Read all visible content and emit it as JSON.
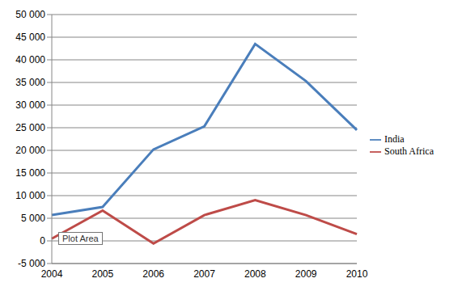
{
  "chart_data": {
    "type": "line",
    "categories": [
      "2004",
      "2005",
      "2006",
      "2007",
      "2008",
      "2009",
      "2010"
    ],
    "series": [
      {
        "name": "India",
        "color": "#4a7ebb",
        "values": [
          5700,
          7500,
          20200,
          25300,
          43500,
          35300,
          24500
        ]
      },
      {
        "name": "South Africa",
        "color": "#be4b48",
        "values": [
          500,
          6700,
          -600,
          5700,
          9000,
          5700,
          1500
        ]
      }
    ],
    "ylim": [
      -5000,
      50000
    ],
    "yticks": [
      {
        "value": -5000,
        "label": "-5 000"
      },
      0,
      {
        "value": 5000,
        "label": "5 000"
      },
      {
        "value": 10000,
        "label": "10 000"
      },
      {
        "value": 15000,
        "label": "15 000"
      },
      {
        "value": 20000,
        "label": "20 000"
      },
      {
        "value": 25000,
        "label": "25 000"
      },
      {
        "value": 30000,
        "label": "30 000"
      },
      {
        "value": 35000,
        "label": "35 000"
      },
      {
        "value": 40000,
        "label": "40 000"
      },
      {
        "value": 45000,
        "label": "45 000"
      },
      {
        "value": 50000,
        "label": "50 000"
      }
    ],
    "grid": true,
    "legend": "right",
    "annotations": [
      "Plot Area"
    ]
  }
}
